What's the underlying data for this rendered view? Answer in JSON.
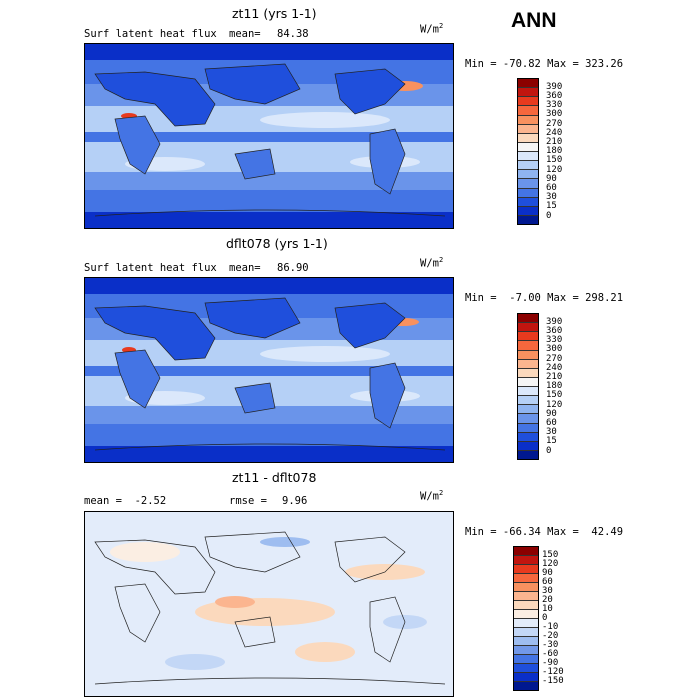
{
  "season": "ANN",
  "units_base": "W/m",
  "units_exp": "2",
  "panels": [
    {
      "title": "zt11 (yrs 1-1)",
      "left_label": "Surf latent heat flux",
      "stat_label": "mean=",
      "stat_value": "84.38",
      "minmax": "Min = -70.82 Max = 323.26",
      "colorbar": {
        "labels": [
          "390",
          "360",
          "330",
          "300",
          "270",
          "240",
          "210",
          "180",
          "150",
          "120",
          "90",
          "60",
          "30",
          "15",
          "0"
        ],
        "colors": [
          "#8b0000",
          "#c1150f",
          "#e83a1e",
          "#f6673d",
          "#f8915f",
          "#fbb58f",
          "#fbd9bd",
          "#f5f5f5",
          "#dbe8fb",
          "#b5d0f6",
          "#8fb4f0",
          "#6a94ea",
          "#4474e4",
          "#1f4fdc",
          "#0a2fc8",
          "#001890"
        ]
      }
    },
    {
      "title": "dflt078 (yrs 1-1)",
      "left_label": "Surf latent heat flux",
      "stat_label": "mean=",
      "stat_value": "86.90",
      "minmax": "Min =  -7.00 Max = 298.21",
      "colorbar": {
        "labels": [
          "390",
          "360",
          "330",
          "300",
          "270",
          "240",
          "210",
          "180",
          "150",
          "120",
          "90",
          "60",
          "30",
          "15",
          "0"
        ],
        "colors": [
          "#8b0000",
          "#c1150f",
          "#e83a1e",
          "#f6673d",
          "#f8915f",
          "#fbb58f",
          "#fbd9bd",
          "#f5f5f5",
          "#dbe8fb",
          "#b5d0f6",
          "#8fb4f0",
          "#6a94ea",
          "#4474e4",
          "#1f4fdc",
          "#0a2fc8",
          "#001890"
        ]
      }
    },
    {
      "title": "zt11 - dflt078",
      "left_label": "mean =  -2.52",
      "stat_label": "rmse =",
      "stat_value": "9.96",
      "minmax": "Min = -66.34 Max =  42.49",
      "colorbar": {
        "labels": [
          "150",
          "120",
          "90",
          "60",
          "30",
          "20",
          "10",
          "0",
          "-10",
          "-20",
          "-30",
          "-60",
          "-90",
          "-120",
          "-150"
        ],
        "colors": [
          "#8b0000",
          "#c1150f",
          "#e83a1e",
          "#f6673d",
          "#f8915f",
          "#fbb58f",
          "#fbd9bd",
          "#fbeee3",
          "#e3ecfa",
          "#c3d7f6",
          "#9ebdf0",
          "#7298e8",
          "#4474e4",
          "#1f4fdc",
          "#0a2fc8",
          "#001890"
        ]
      }
    }
  ]
}
